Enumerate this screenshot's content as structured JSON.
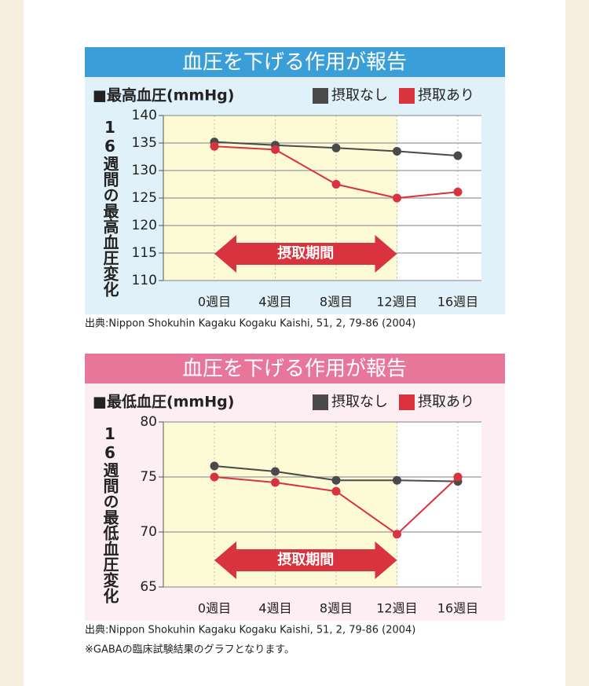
{
  "chart_data": [
    {
      "type": "line",
      "title": "血圧を下げる作用が報告",
      "subtitle": "■最高血圧(mmHg)",
      "y_label": "16週間の最高血圧変化",
      "header_color": "#3a9fd8",
      "panel_color": "#e0f1fa",
      "categories": [
        "0週目",
        "4週目",
        "8週目",
        "12週目",
        "16週目"
      ],
      "series": [
        {
          "name": "摂取なし",
          "color": "#4a4a4a",
          "values": [
            135.2,
            134.6,
            134.1,
            133.5,
            132.7
          ]
        },
        {
          "name": "摂取あり",
          "color": "#d9333f",
          "values": [
            134.4,
            133.8,
            127.5,
            125.0,
            126.1
          ]
        }
      ],
      "ylim": [
        110,
        140
      ],
      "yticks": [
        110,
        115,
        120,
        125,
        130,
        135,
        140
      ],
      "grid": true,
      "annotation": "摂取期間",
      "source": "出典:Nippon Shokuhin Kagaku Kogaku Kaishi, 51, 2, 79-86 (2004)"
    },
    {
      "type": "line",
      "title": "血圧を下げる作用が報告",
      "subtitle": "■最低血圧(mmHg)",
      "y_label": "16週間の最低血圧変化",
      "header_color": "#e8769a",
      "panel_color": "#fdeef3",
      "categories": [
        "0週目",
        "4週目",
        "8週目",
        "12週目",
        "16週目"
      ],
      "series": [
        {
          "name": "摂取なし",
          "color": "#4a4a4a",
          "values": [
            76.0,
            75.5,
            74.7,
            74.7,
            74.6
          ]
        },
        {
          "name": "摂取あり",
          "color": "#d9333f",
          "values": [
            75.0,
            74.5,
            73.7,
            69.8,
            75.0
          ]
        }
      ],
      "ylim": [
        65,
        80
      ],
      "yticks": [
        65,
        70,
        75,
        80
      ],
      "grid": true,
      "annotation": "摂取期間",
      "source": "出典:Nippon Shokuhin Kagaku Kogaku Kaishi, 51, 2, 79-86 (2004)",
      "note": "※GABAの臨床試験結果のグラフとなります。"
    }
  ]
}
